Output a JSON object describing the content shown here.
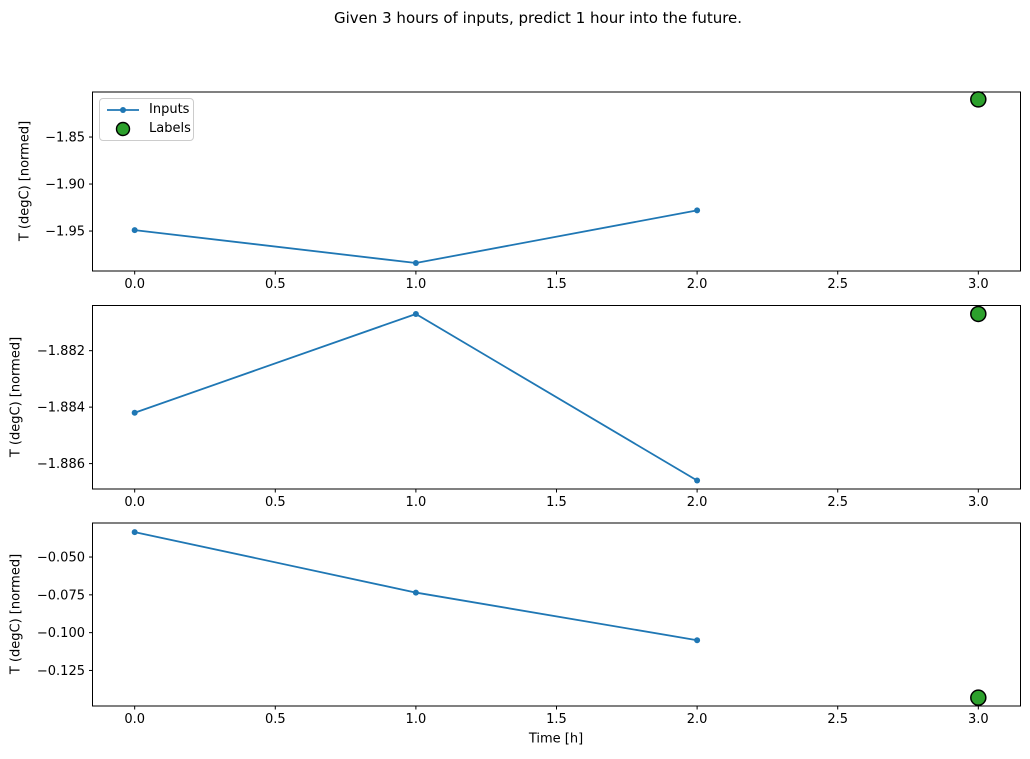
{
  "title": "Given 3 hours of inputs, predict 1 hour into the future.",
  "xlabel": "Time [h]",
  "colors": {
    "inputs": "#1f77b4",
    "labels": "#2ca02c",
    "marker_edge": "#000000",
    "axis": "#000000"
  },
  "legend": {
    "items": [
      {
        "label": "Inputs",
        "marker": "line-dot-icon"
      },
      {
        "label": "Labels",
        "marker": "circle-icon"
      }
    ]
  },
  "chart_data": [
    {
      "type": "line",
      "ylabel": "T (degC) [normed]",
      "x": [
        0,
        1,
        2
      ],
      "series": [
        {
          "name": "Inputs",
          "values": [
            -1.949,
            -1.984,
            -1.928
          ]
        }
      ],
      "labels_series": {
        "name": "Labels",
        "x": [
          3
        ],
        "values": [
          -1.81
        ]
      },
      "xticks": [
        0,
        0.5,
        1,
        1.5,
        2,
        2.5,
        3
      ],
      "xtick_labels": [
        "0.0",
        "0.5",
        "1.0",
        "1.5",
        "2.0",
        "2.5",
        "3.0"
      ],
      "yticks": [
        -1.85,
        -1.9,
        -1.95
      ],
      "ytick_labels": [
        "−1.85",
        "−1.90",
        "−1.95"
      ],
      "xlim": [
        -0.15,
        3.15
      ],
      "ylim": [
        -1.9925,
        -1.8021
      ],
      "grid": false,
      "legend_position": "upper left"
    },
    {
      "type": "line",
      "ylabel": "T (degC) [normed]",
      "x": [
        0,
        1,
        2
      ],
      "series": [
        {
          "name": "Inputs",
          "values": [
            -1.8842,
            -1.8807,
            -1.8866
          ]
        }
      ],
      "labels_series": {
        "name": "Labels",
        "x": [
          3
        ],
        "values": [
          -1.8807
        ]
      },
      "xticks": [
        0,
        0.5,
        1,
        1.5,
        2,
        2.5,
        3
      ],
      "xtick_labels": [
        "0.0",
        "0.5",
        "1.0",
        "1.5",
        "2.0",
        "2.5",
        "3.0"
      ],
      "yticks": [
        -1.882,
        -1.884,
        -1.886
      ],
      "ytick_labels": [
        "−1.882",
        "−1.884",
        "−1.886"
      ],
      "xlim": [
        -0.15,
        3.15
      ],
      "ylim": [
        -1.8869,
        -1.8804
      ],
      "grid": false,
      "legend_position": "none"
    },
    {
      "type": "line",
      "ylabel": "T (degC) [normed]",
      "x": [
        0,
        1,
        2
      ],
      "series": [
        {
          "name": "Inputs",
          "values": [
            -0.0335,
            -0.0735,
            -0.105
          ]
        }
      ],
      "labels_series": {
        "name": "Labels",
        "x": [
          3
        ],
        "values": [
          -0.143
        ]
      },
      "xticks": [
        0,
        0.5,
        1,
        1.5,
        2,
        2.5,
        3
      ],
      "xtick_labels": [
        "0.0",
        "0.5",
        "1.0",
        "1.5",
        "2.0",
        "2.5",
        "3.0"
      ],
      "yticks": [
        -0.05,
        -0.075,
        -0.1,
        -0.125
      ],
      "ytick_labels": [
        "−0.050",
        "−0.075",
        "−0.100",
        "−0.125"
      ],
      "xlim": [
        -0.15,
        3.15
      ],
      "ylim": [
        -0.1485,
        -0.0275
      ],
      "grid": false,
      "legend_position": "none"
    }
  ]
}
